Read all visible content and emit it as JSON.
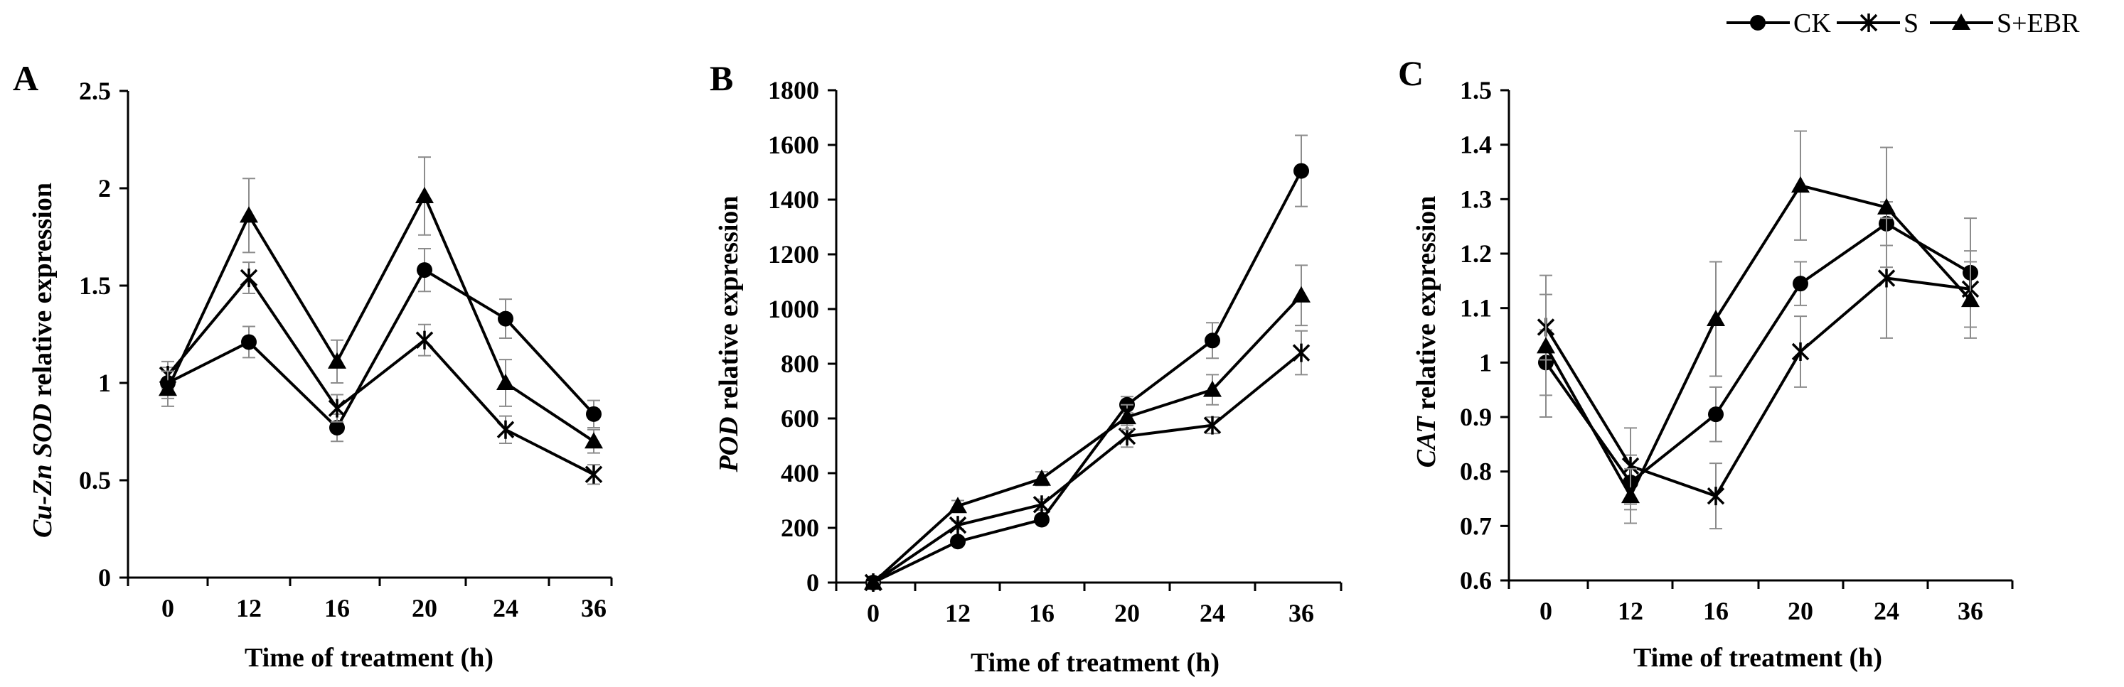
{
  "legend": [
    {
      "name": "CK",
      "marker": "circle"
    },
    {
      "name": "S",
      "marker": "asterisk"
    },
    {
      "name": "S+EBR",
      "marker": "triangle"
    }
  ],
  "chart_data": [
    {
      "type": "line",
      "panel_label": "A",
      "title": "",
      "ylabel_italic": "Cu-Zn SOD",
      "ylabel_rest": " relative expression",
      "xlabel": "Time of treatment (h)",
      "categories": [
        "0",
        "12",
        "16",
        "20",
        "24",
        "36"
      ],
      "ylim": [
        0,
        2.5
      ],
      "yticks": [
        "0",
        "0.5",
        "1",
        "1.5",
        "2",
        "2.5"
      ],
      "series": [
        {
          "name": "CK",
          "marker": "circle",
          "values": [
            1.0,
            1.21,
            0.77,
            1.58,
            1.33,
            0.84
          ],
          "errors": [
            0.08,
            0.08,
            0.07,
            0.11,
            0.1,
            0.07
          ]
        },
        {
          "name": "S",
          "marker": "asterisk",
          "values": [
            1.04,
            1.54,
            0.87,
            1.22,
            0.76,
            0.53
          ],
          "errors": [
            0.07,
            0.08,
            0.07,
            0.08,
            0.07,
            0.05
          ]
        },
        {
          "name": "S+EBR",
          "marker": "triangle",
          "values": [
            0.97,
            1.86,
            1.11,
            1.96,
            1.0,
            0.7
          ],
          "errors": [
            0.09,
            0.19,
            0.11,
            0.2,
            0.12,
            0.06
          ]
        }
      ]
    },
    {
      "type": "line",
      "panel_label": "B",
      "title": "",
      "ylabel_italic": "POD",
      "ylabel_rest": " relative expression",
      "xlabel": "Time of treatment (h)",
      "categories": [
        "0",
        "12",
        "16",
        "20",
        "24",
        "36"
      ],
      "ylim": [
        0,
        1800
      ],
      "yticks": [
        "0",
        "200",
        "400",
        "600",
        "800",
        "1000",
        "1200",
        "1400",
        "1600",
        "1800"
      ],
      "series": [
        {
          "name": "CK",
          "marker": "circle",
          "values": [
            0,
            150,
            230,
            650,
            885,
            1505
          ],
          "errors": [
            2,
            12,
            15,
            30,
            65,
            130
          ]
        },
        {
          "name": "S",
          "marker": "asterisk",
          "values": [
            0,
            210,
            285,
            535,
            575,
            840
          ],
          "errors": [
            2,
            15,
            20,
            40,
            30,
            80
          ]
        },
        {
          "name": "S+EBR",
          "marker": "triangle",
          "values": [
            0,
            280,
            380,
            605,
            705,
            1050
          ],
          "errors": [
            2,
            20,
            25,
            45,
            55,
            110
          ]
        }
      ]
    },
    {
      "type": "line",
      "panel_label": "C",
      "title": "",
      "ylabel_italic": "CAT",
      "ylabel_rest": " relative expression",
      "xlabel": "Time of treatment (h)",
      "categories": [
        "0",
        "12",
        "16",
        "20",
        "24",
        "36"
      ],
      "ylim": [
        0.6,
        1.5
      ],
      "yticks": [
        "0.6",
        "0.7",
        "0.8",
        "0.9",
        "1",
        "1.1",
        "1.2",
        "1.3",
        "1.4",
        "1.5"
      ],
      "series": [
        {
          "name": "CK",
          "marker": "circle",
          "values": [
            1.0,
            0.78,
            0.905,
            1.145,
            1.255,
            1.165
          ],
          "errors": [
            0.06,
            0.05,
            0.05,
            0.04,
            0.04,
            0.1
          ]
        },
        {
          "name": "S",
          "marker": "asterisk",
          "values": [
            1.065,
            0.81,
            0.755,
            1.02,
            1.155,
            1.135
          ],
          "errors": [
            0.06,
            0.07,
            0.06,
            0.065,
            0.11,
            0.07
          ]
        },
        {
          "name": "S+EBR",
          "marker": "triangle",
          "values": [
            1.03,
            0.755,
            1.08,
            1.325,
            1.285,
            1.115
          ],
          "errors": [
            0.13,
            0.05,
            0.105,
            0.1,
            0.11,
            0.07
          ]
        }
      ]
    }
  ]
}
